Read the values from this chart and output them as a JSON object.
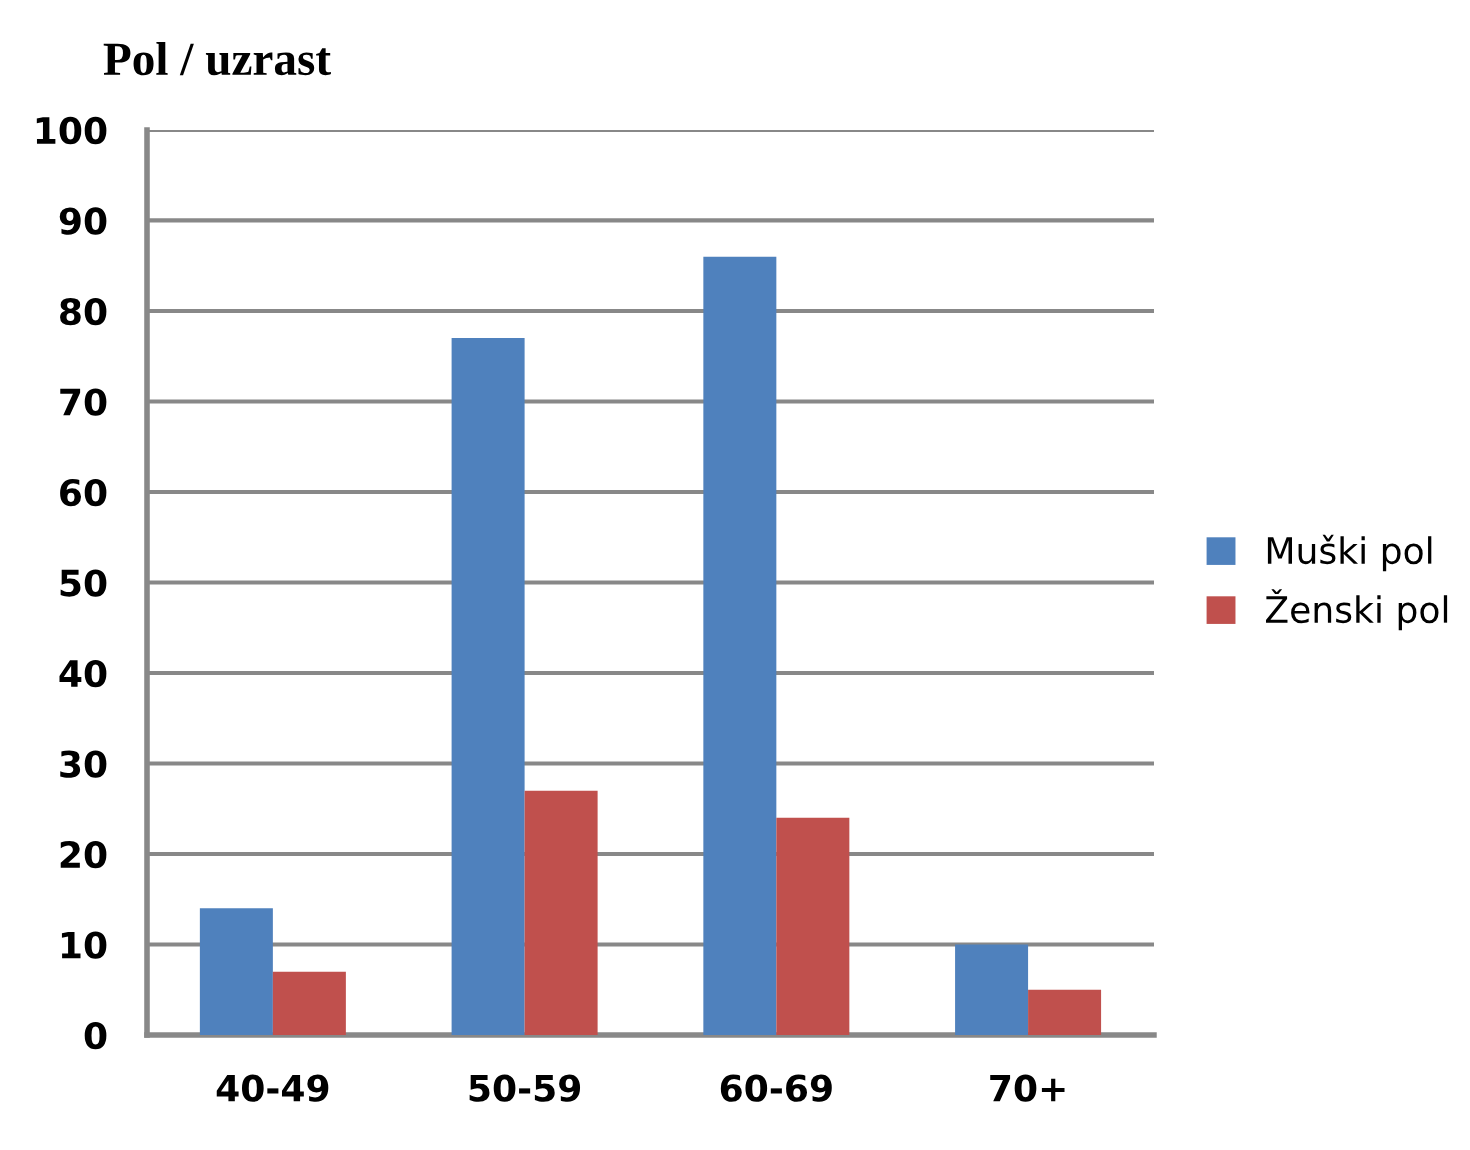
{
  "chart_data": {
    "type": "bar",
    "title": "Pol / uzrast",
    "categories": [
      "40-49",
      "50-59",
      "60-69",
      "70+"
    ],
    "series": [
      {
        "name": "Muški pol",
        "color": "#4f81bd",
        "values": [
          14,
          77,
          86,
          10
        ]
      },
      {
        "name": "Ženski pol",
        "color": "#c0504d",
        "values": [
          7,
          27,
          24,
          5
        ]
      }
    ],
    "ylim": [
      0,
      100
    ],
    "yticks": [
      0,
      10,
      20,
      30,
      40,
      50,
      60,
      70,
      80,
      90,
      100
    ],
    "grid": "y",
    "legend": "right"
  }
}
